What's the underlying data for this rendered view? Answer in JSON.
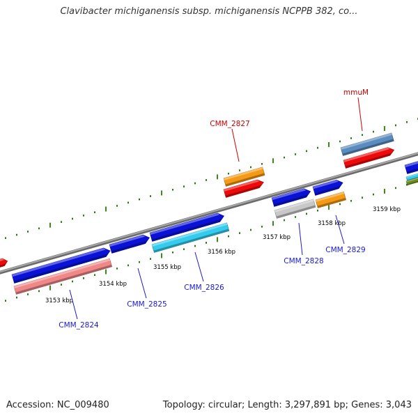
{
  "title": "Clavibacter michiganensis subsp. michiganensis NCPPB 382, co...",
  "footer": {
    "accession": "Accession: NC_009480",
    "summary": "Topology: circular; Length: 3,297,891 bp; Genes: 3,043"
  },
  "ticks": [
    "3153 kbp",
    "3154 kbp",
    "3155 kbp",
    "3156 kbp",
    "3157 kbp",
    "3158 kbp",
    "3159 kbp"
  ],
  "gene_labels": {
    "reverse": [
      "CMM_2827",
      "mmuM"
    ],
    "forward": [
      "CMM_2824",
      "CMM_2825",
      "CMM_2826",
      "CMM_2828",
      "CMM_2829"
    ]
  },
  "colors": {
    "backbone": "#808080",
    "tick_major": "#3a8a1c",
    "tick_minor": "#2d7a10",
    "cds": "#0a12d8",
    "reverse_label": "#cc0000",
    "forward_label": "#1a1acc",
    "salmon": "#f08888",
    "cyan": "#33ccee",
    "orange": "#f59a14",
    "red": "#ee0a0a",
    "grey": "#c8c8c8",
    "steel": "#5a8cbf"
  }
}
